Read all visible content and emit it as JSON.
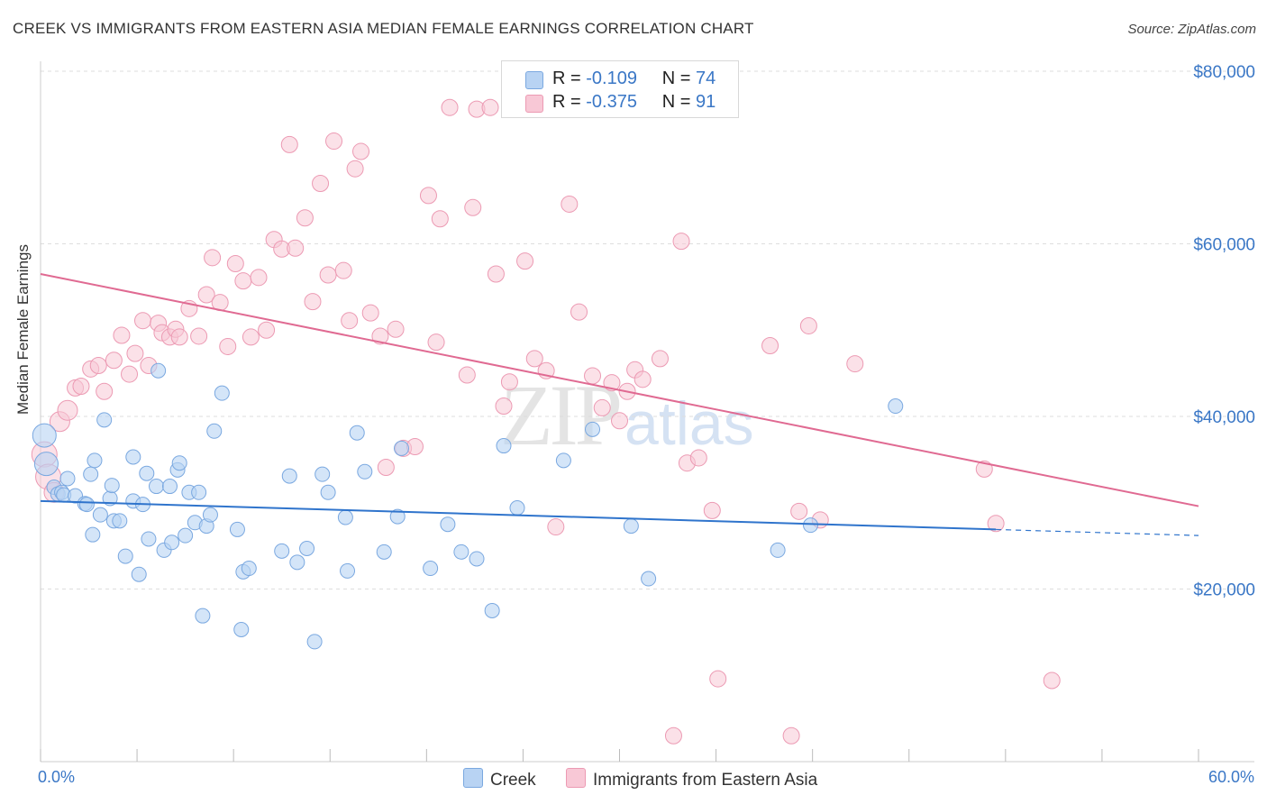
{
  "header": {
    "title": "CREEK VS IMMIGRANTS FROM EASTERN ASIA MEDIAN FEMALE EARNINGS CORRELATION CHART",
    "source": "Source: ZipAtlas.com"
  },
  "watermark": {
    "zip": "ZIP",
    "atlas": "atlas"
  },
  "legend": {
    "rows": [
      {
        "r_label": "R =",
        "r_value": "-0.109",
        "n_label": "N =",
        "n_value": "74"
      },
      {
        "r_label": "R =",
        "r_value": "-0.375",
        "n_label": "N =",
        "n_value": "91"
      }
    ]
  },
  "colors": {
    "creek_fill": "#b8d3f3",
    "creek_stroke": "#7aa8e0",
    "creek_line": "#2f74cc",
    "asia_fill": "#f8c8d6",
    "asia_stroke": "#ec9ab3",
    "asia_line": "#e06a92",
    "axis_text": "#3a77c6",
    "grid": "#dddddd"
  },
  "chart_data": {
    "type": "scatter",
    "title": "CREEK VS IMMIGRANTS FROM EASTERN ASIA MEDIAN FEMALE EARNINGS CORRELATION CHART",
    "xlabel": "",
    "ylabel": "Median Female Earnings",
    "xlim": [
      0,
      60
    ],
    "ylim": [
      0,
      82000
    ],
    "x_tick_labels": [
      "0.0%",
      "60.0%"
    ],
    "y_ticks": [
      20000,
      40000,
      60000,
      80000
    ],
    "y_tick_labels": [
      "$20,000",
      "$40,000",
      "$60,000",
      "$80,000"
    ],
    "grid": true,
    "legend_position": "top-center",
    "series": [
      {
        "name": "Creek",
        "r": -0.109,
        "n": 74,
        "trend": {
          "x": [
            0,
            49.5
          ],
          "y": [
            30200,
            26900
          ]
        },
        "trend_dashed": {
          "x": [
            49.5,
            60
          ],
          "y": [
            26900,
            26200
          ]
        },
        "points": [
          [
            0.2,
            37800
          ],
          [
            0.3,
            34500
          ],
          [
            0.7,
            31800
          ],
          [
            0.9,
            31000
          ],
          [
            1.1,
            31200
          ],
          [
            1.2,
            30900
          ],
          [
            1.4,
            32800
          ],
          [
            1.8,
            30800
          ],
          [
            2.3,
            29900
          ],
          [
            2.4,
            29800
          ],
          [
            2.6,
            33300
          ],
          [
            2.7,
            26300
          ],
          [
            2.8,
            34900
          ],
          [
            3.1,
            28600
          ],
          [
            3.3,
            39600
          ],
          [
            3.6,
            30500
          ],
          [
            3.7,
            32000
          ],
          [
            3.8,
            27900
          ],
          [
            4.1,
            27900
          ],
          [
            4.4,
            23800
          ],
          [
            4.8,
            35300
          ],
          [
            4.8,
            30200
          ],
          [
            5.1,
            21700
          ],
          [
            5.3,
            29800
          ],
          [
            5.5,
            33400
          ],
          [
            5.6,
            25800
          ],
          [
            6.0,
            31900
          ],
          [
            6.1,
            45300
          ],
          [
            6.4,
            24500
          ],
          [
            6.7,
            31900
          ],
          [
            6.8,
            25400
          ],
          [
            7.1,
            33800
          ],
          [
            7.2,
            34600
          ],
          [
            7.5,
            26200
          ],
          [
            7.7,
            31200
          ],
          [
            8.0,
            27700
          ],
          [
            8.2,
            31200
          ],
          [
            8.4,
            16900
          ],
          [
            8.6,
            27300
          ],
          [
            8.8,
            28600
          ],
          [
            9.0,
            38300
          ],
          [
            9.4,
            42700
          ],
          [
            10.2,
            26900
          ],
          [
            10.4,
            15300
          ],
          [
            10.5,
            22000
          ],
          [
            10.8,
            22400
          ],
          [
            12.5,
            24400
          ],
          [
            12.9,
            33100
          ],
          [
            13.3,
            23100
          ],
          [
            13.8,
            24700
          ],
          [
            14.2,
            13900
          ],
          [
            14.6,
            33300
          ],
          [
            14.9,
            31200
          ],
          [
            15.8,
            28300
          ],
          [
            15.9,
            22100
          ],
          [
            16.4,
            38100
          ],
          [
            16.8,
            33600
          ],
          [
            17.8,
            24300
          ],
          [
            18.5,
            28400
          ],
          [
            18.7,
            36300
          ],
          [
            20.2,
            22400
          ],
          [
            21.1,
            27500
          ],
          [
            21.8,
            24300
          ],
          [
            22.6,
            23500
          ],
          [
            23.4,
            17500
          ],
          [
            24.0,
            36600
          ],
          [
            24.7,
            29400
          ],
          [
            27.1,
            34900
          ],
          [
            28.6,
            38500
          ],
          [
            30.6,
            27300
          ],
          [
            31.5,
            21200
          ],
          [
            38.2,
            24500
          ],
          [
            39.9,
            27400
          ],
          [
            44.3,
            41200
          ]
        ]
      },
      {
        "name": "Immigrants from Eastern Asia",
        "r": -0.375,
        "n": 91,
        "trend": {
          "x": [
            0,
            60
          ],
          "y": [
            56500,
            29600
          ]
        },
        "points": [
          [
            0.2,
            35600
          ],
          [
            0.4,
            33000
          ],
          [
            0.7,
            31200
          ],
          [
            1.0,
            39400
          ],
          [
            1.4,
            40700
          ],
          [
            1.8,
            43300
          ],
          [
            2.1,
            43500
          ],
          [
            2.6,
            45500
          ],
          [
            3.0,
            45900
          ],
          [
            3.3,
            42900
          ],
          [
            3.8,
            46500
          ],
          [
            4.2,
            49400
          ],
          [
            4.6,
            44900
          ],
          [
            4.9,
            47300
          ],
          [
            5.3,
            51100
          ],
          [
            5.6,
            45900
          ],
          [
            6.1,
            50800
          ],
          [
            6.3,
            49700
          ],
          [
            6.7,
            49200
          ],
          [
            7.0,
            50100
          ],
          [
            7.2,
            49200
          ],
          [
            7.7,
            52500
          ],
          [
            8.2,
            49300
          ],
          [
            8.6,
            54100
          ],
          [
            8.9,
            58400
          ],
          [
            9.3,
            53200
          ],
          [
            9.7,
            48100
          ],
          [
            10.1,
            57700
          ],
          [
            10.5,
            55700
          ],
          [
            10.9,
            49200
          ],
          [
            11.3,
            56100
          ],
          [
            11.7,
            50000
          ],
          [
            12.1,
            60500
          ],
          [
            12.5,
            59400
          ],
          [
            12.9,
            71500
          ],
          [
            13.2,
            59500
          ],
          [
            13.7,
            63000
          ],
          [
            14.1,
            53300
          ],
          [
            14.5,
            67000
          ],
          [
            14.9,
            56400
          ],
          [
            15.2,
            71900
          ],
          [
            15.7,
            56900
          ],
          [
            16.0,
            51100
          ],
          [
            16.3,
            68700
          ],
          [
            16.6,
            70700
          ],
          [
            17.1,
            52000
          ],
          [
            17.6,
            49300
          ],
          [
            17.9,
            34100
          ],
          [
            18.4,
            50100
          ],
          [
            18.8,
            36300
          ],
          [
            19.4,
            36500
          ],
          [
            20.1,
            65600
          ],
          [
            20.5,
            48600
          ],
          [
            20.7,
            62900
          ],
          [
            21.2,
            75800
          ],
          [
            22.1,
            44800
          ],
          [
            22.4,
            64200
          ],
          [
            22.6,
            75600
          ],
          [
            23.3,
            75800
          ],
          [
            23.6,
            56500
          ],
          [
            24.0,
            41200
          ],
          [
            24.3,
            44000
          ],
          [
            25.1,
            58000
          ],
          [
            25.6,
            46700
          ],
          [
            26.2,
            45300
          ],
          [
            26.7,
            27200
          ],
          [
            27.4,
            64600
          ],
          [
            27.9,
            52100
          ],
          [
            28.6,
            44700
          ],
          [
            29.1,
            41000
          ],
          [
            29.6,
            43900
          ],
          [
            30.0,
            39500
          ],
          [
            30.4,
            42900
          ],
          [
            30.8,
            45400
          ],
          [
            31.2,
            44300
          ],
          [
            32.1,
            46700
          ],
          [
            32.8,
            3000
          ],
          [
            33.2,
            60300
          ],
          [
            33.5,
            34600
          ],
          [
            34.1,
            35200
          ],
          [
            34.8,
            29100
          ],
          [
            35.1,
            9600
          ],
          [
            37.8,
            48200
          ],
          [
            38.9,
            3000
          ],
          [
            39.3,
            29000
          ],
          [
            39.8,
            50500
          ],
          [
            40.4,
            28000
          ],
          [
            42.2,
            46100
          ],
          [
            48.9,
            33900
          ],
          [
            49.5,
            27600
          ],
          [
            52.4,
            9400
          ]
        ]
      }
    ]
  },
  "bottom_legend": {
    "items": [
      {
        "label": "Creek"
      },
      {
        "label": "Immigrants from Eastern Asia"
      }
    ]
  }
}
